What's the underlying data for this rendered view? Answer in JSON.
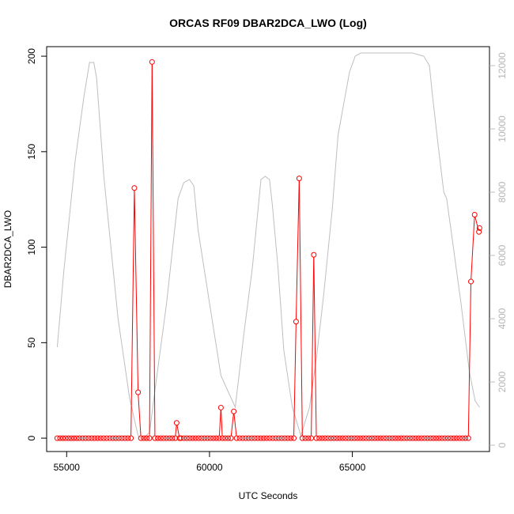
{
  "chart_data": {
    "type": "line",
    "title": "ORCAS RF09 DBAR2DCA_LWO (Log)",
    "xlabel": "UTC Seconds",
    "ylabel": "DBAR2DCA_LWO",
    "xlim": [
      54300,
      69800
    ],
    "ylim": [
      -7,
      205
    ],
    "y2lim": [
      -200,
      12600
    ],
    "x_ticks": [
      55000,
      60000,
      65000
    ],
    "y_ticks": [
      0,
      50,
      100,
      150,
      200
    ],
    "y2_ticks": [
      0,
      2000,
      4000,
      6000,
      8000,
      10000,
      12000
    ],
    "grid": false,
    "colors": {
      "primary": "#ff0000",
      "secondary": "#bebebe"
    },
    "series": [
      {
        "axis": "left",
        "marker": "open-circle",
        "zero_spacing": 103.3,
        "x": [
          54670,
          55450,
          57250,
          57370,
          57500,
          57600,
          57900,
          57990,
          58090,
          58800,
          58850,
          58950,
          59000,
          60340,
          60400,
          60450,
          60750,
          60850,
          60950,
          62950,
          63030,
          63140,
          63250,
          63560,
          63650,
          63740,
          69060,
          69150,
          69280,
          69430,
          69450
        ],
        "values": [
          0,
          0,
          0,
          131,
          24,
          0,
          0,
          197,
          0,
          0,
          8,
          0,
          0,
          0,
          16,
          0,
          0,
          14,
          0,
          0,
          61,
          136,
          0,
          0,
          96,
          0,
          0,
          82,
          117,
          108,
          110
        ]
      },
      {
        "axis": "right",
        "x": [
          54670,
          54900,
          55300,
          55600,
          55800,
          55950,
          56050,
          56300,
          56800,
          57200,
          57500,
          57650,
          57900,
          58100,
          58500,
          58900,
          59100,
          59300,
          59450,
          59600,
          60000,
          60400,
          60900,
          61200,
          61500,
          61800,
          61950,
          62100,
          62200,
          62400,
          62600,
          62900,
          63200,
          63500,
          63750,
          64000,
          64300,
          64500,
          64700,
          64800,
          64900,
          65100,
          65300,
          65700,
          66100,
          66600,
          67100,
          67500,
          67700,
          67800,
          68000,
          68200,
          68300,
          68500,
          68800,
          69100,
          69300,
          69450
        ],
        "values": [
          3100,
          5500,
          9000,
          11000,
          12100,
          12100,
          11600,
          8500,
          4000,
          1500,
          300,
          200,
          400,
          1800,
          4500,
          7800,
          8300,
          8400,
          8200,
          6800,
          4500,
          2200,
          1200,
          3500,
          5600,
          8400,
          8500,
          8400,
          7600,
          5600,
          3000,
          1200,
          300,
          1200,
          2800,
          4800,
          7500,
          9800,
          10800,
          11300,
          11800,
          12300,
          12400,
          12400,
          12400,
          12400,
          12400,
          12300,
          12000,
          11100,
          9500,
          8000,
          7800,
          6500,
          4500,
          2300,
          1400,
          1200
        ]
      }
    ]
  }
}
